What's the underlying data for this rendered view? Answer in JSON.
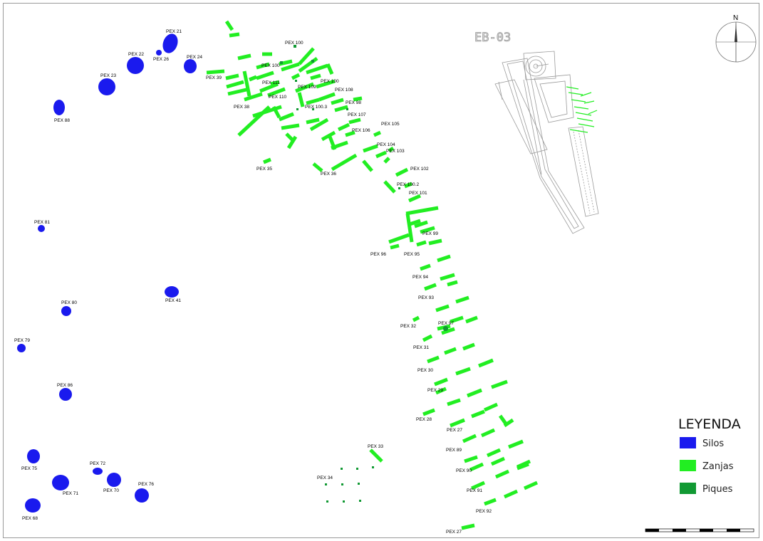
{
  "building_label": "EB-03",
  "north_label": "N",
  "legend": {
    "title": "LEYENDA",
    "items": [
      {
        "label": "Silos",
        "color": "#1a1aee"
      },
      {
        "label": "Zanjas",
        "color": "#22ee22"
      },
      {
        "label": "Piques",
        "color": "#119933"
      }
    ]
  },
  "silos": [
    {
      "label": "PEX 21"
    },
    {
      "label": "PEX 22"
    },
    {
      "label": "PEX 26"
    },
    {
      "label": "PEX 24"
    },
    {
      "label": "PEX 23"
    },
    {
      "label": "PEX 88"
    },
    {
      "label": "PEX 81"
    },
    {
      "label": "PEX 41"
    },
    {
      "label": "PEX 80"
    },
    {
      "label": "PEX 79"
    },
    {
      "label": "PEX 86"
    },
    {
      "label": "PEX 75"
    },
    {
      "label": "PEX 72"
    },
    {
      "label": "PEX 71"
    },
    {
      "label": "PEX 70"
    },
    {
      "label": "PEX 76"
    },
    {
      "label": "PEX 68"
    }
  ],
  "zanja_labels": [
    "PEX 39",
    "PEX 38",
    "PEX 35",
    "PEX 36",
    "PEX 111",
    "PEX 110",
    "PEX 109",
    "PEX 108",
    "PEX 107",
    "PEX 106",
    "PEX 105",
    "PEX 104",
    "PEX 103",
    "PEX 102",
    "PEX 101",
    "PEX 99",
    "PEX 96",
    "PEX 95",
    "PEX 94",
    "PEX 93",
    "PEX 32",
    "PEX 97",
    "PEX 31",
    "PEX 30",
    "PEX 29",
    "PEX 28",
    "PEX 27",
    "PEX 89",
    "PEX 90",
    "PEX 91",
    "PEX 92",
    "PEX 27",
    "PEX 33"
  ],
  "pique_labels": [
    "PEX 100",
    "PEX 100",
    "PEX 100",
    "PEX 98",
    "PEX 100.3",
    "PEX 100.2",
    "PEX 34"
  ]
}
